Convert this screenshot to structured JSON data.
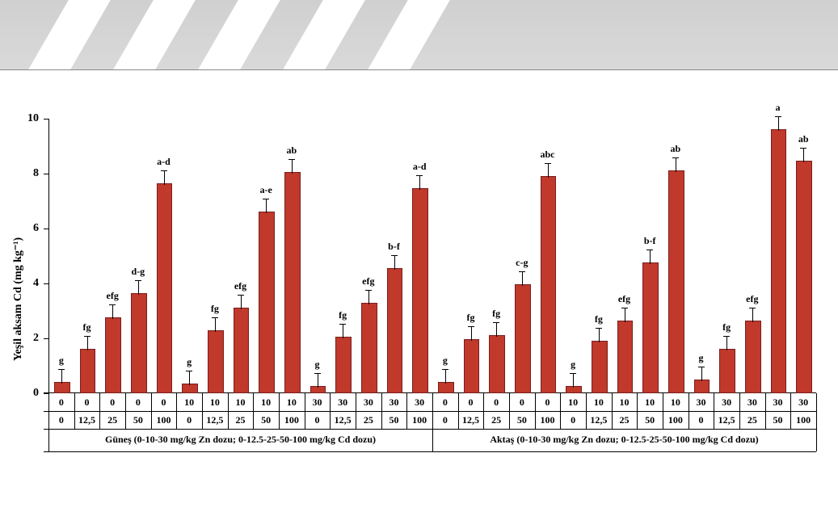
{
  "chart": {
    "type": "bar",
    "background_color": "#ffffff",
    "bar_fill": "#c0392b",
    "bar_border": "#7a1e1e",
    "axis_color": "#000000",
    "ylabel": "Yeşil aksam Cd (mg kg⁻¹)",
    "y_title_fontsize": 14,
    "label_fontsize": 12,
    "annotation_fontsize": 12,
    "ylim": [
      0,
      10
    ],
    "yticks": [
      0,
      2,
      4,
      6,
      8,
      10
    ],
    "error_height": 0.5,
    "topband_color": "#d7d7d7",
    "bars": [
      {
        "zn": "0",
        "cd": "0",
        "v": 0.35,
        "a": "g"
      },
      {
        "zn": "0",
        "cd": "12,5",
        "v": 1.55,
        "a": "fg"
      },
      {
        "zn": "0",
        "cd": "25",
        "v": 2.7,
        "a": "efg"
      },
      {
        "zn": "0",
        "cd": "50",
        "v": 3.6,
        "a": "d-g"
      },
      {
        "zn": "0",
        "cd": "100",
        "v": 7.6,
        "a": "a-d"
      },
      {
        "zn": "10",
        "cd": "0",
        "v": 0.3,
        "a": "g"
      },
      {
        "zn": "10",
        "cd": "12,5",
        "v": 2.25,
        "a": "fg"
      },
      {
        "zn": "10",
        "cd": "25",
        "v": 3.05,
        "a": "efg"
      },
      {
        "zn": "10",
        "cd": "50",
        "v": 6.55,
        "a": "a-e"
      },
      {
        "zn": "10",
        "cd": "100",
        "v": 8.0,
        "a": "ab"
      },
      {
        "zn": "30",
        "cd": "0",
        "v": 0.2,
        "a": "g"
      },
      {
        "zn": "30",
        "cd": "12,5",
        "v": 2.0,
        "a": "fg"
      },
      {
        "zn": "30",
        "cd": "25",
        "v": 3.25,
        "a": "efg"
      },
      {
        "zn": "30",
        "cd": "50",
        "v": 4.5,
        "a": "b-f"
      },
      {
        "zn": "30",
        "cd": "100",
        "v": 7.4,
        "a": "a-d"
      },
      {
        "zn": "0",
        "cd": "0",
        "v": 0.35,
        "a": "g"
      },
      {
        "zn": "0",
        "cd": "12,5",
        "v": 1.9,
        "a": "fg"
      },
      {
        "zn": "0",
        "cd": "25",
        "v": 2.05,
        "a": "fg"
      },
      {
        "zn": "0",
        "cd": "50",
        "v": 3.9,
        "a": "c-g"
      },
      {
        "zn": "0",
        "cd": "100",
        "v": 7.85,
        "a": "abc"
      },
      {
        "zn": "10",
        "cd": "0",
        "v": 0.2,
        "a": "g"
      },
      {
        "zn": "10",
        "cd": "12,5",
        "v": 1.85,
        "a": "fg"
      },
      {
        "zn": "10",
        "cd": "25",
        "v": 2.6,
        "a": "efg"
      },
      {
        "zn": "10",
        "cd": "50",
        "v": 4.7,
        "a": "b-f"
      },
      {
        "zn": "10",
        "cd": "100",
        "v": 8.05,
        "a": "ab"
      },
      {
        "zn": "30",
        "cd": "0",
        "v": 0.45,
        "a": "g"
      },
      {
        "zn": "30",
        "cd": "12,5",
        "v": 1.55,
        "a": "fg"
      },
      {
        "zn": "30",
        "cd": "25",
        "v": 2.6,
        "a": "efg"
      },
      {
        "zn": "30",
        "cd": "50",
        "v": 9.55,
        "a": "a"
      },
      {
        "zn": "30",
        "cd": "100",
        "v": 8.4,
        "a": "ab"
      }
    ],
    "groups": [
      {
        "label": "Güneş (0-10-30 mg/kg Zn dozu; 0-12.5-25-50-100 mg/kg Cd dozu)",
        "start": 0,
        "end": 14
      },
      {
        "label": "Aktaş (0-10-30 mg/kg Zn dozu; 0-12.5-25-50-100 mg/kg Cd dozu)",
        "start": 15,
        "end": 29
      }
    ]
  }
}
